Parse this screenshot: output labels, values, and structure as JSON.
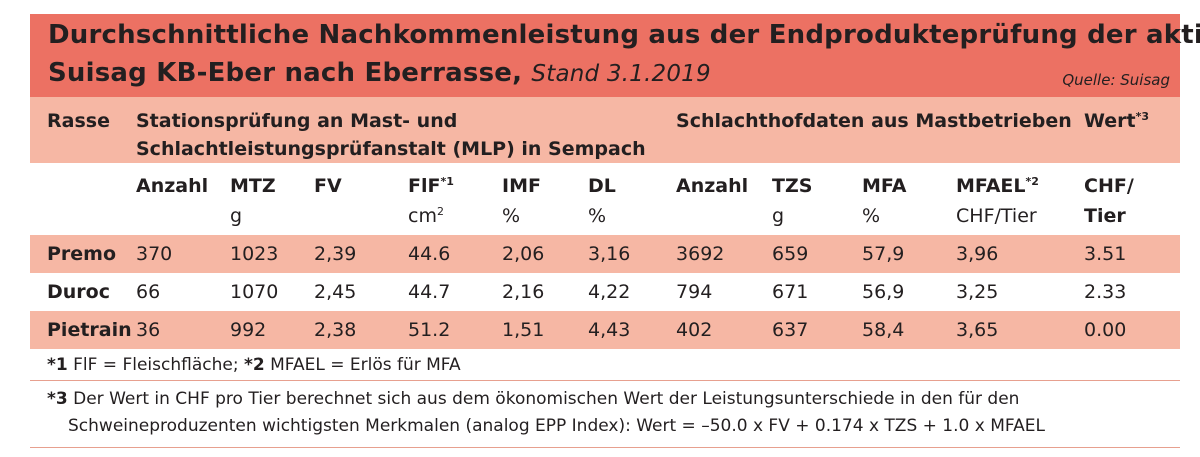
{
  "title": {
    "line1": "Durchschnittliche Nachkommenleistung aus der Endprodukteprüfung der aktiven",
    "line2": "Suisag KB-Eber nach Eberrasse,",
    "stand": "Stand 3.1.2019",
    "source": "Quelle: Suisag"
  },
  "header": {
    "rasse": "Rasse",
    "station_line1": "Stationsprüfung an Mast- und",
    "station_line2": "Schlachtleistungsprüfanstalt (MLP) in Sempach",
    "schlachthof": "Schlachthofdaten aus Mastbetrieben",
    "wert": "Wert",
    "wert_mark": "*3"
  },
  "columns": [
    {
      "label": "Anzahl",
      "unit": ""
    },
    {
      "label": "MTZ",
      "unit": "g"
    },
    {
      "label": "FV",
      "unit": ""
    },
    {
      "label": "FlF",
      "mark": "*1",
      "unit": "cm",
      "unit_sup": "2"
    },
    {
      "label": "IMF",
      "unit": "%"
    },
    {
      "label": "DL",
      "unit": "%"
    },
    {
      "label": "Anzahl",
      "unit": ""
    },
    {
      "label": "TZS",
      "unit": "g"
    },
    {
      "label": "MFA",
      "unit": "%"
    },
    {
      "label": "MFAEL",
      "mark": "*2",
      "unit": "CHF/Tier"
    },
    {
      "label": "CHF/",
      "unit_bold": "Tier"
    }
  ],
  "rows": [
    {
      "name": "Premo",
      "values": [
        "370",
        "1023",
        "2,39",
        "44.6",
        "2,06",
        "3,16",
        "3692",
        "659",
        "57,9",
        "3,96",
        "3.51"
      ]
    },
    {
      "name": "Duroc",
      "values": [
        "66",
        "1070",
        "2,45",
        "44.7",
        "2,16",
        "4,22",
        "794",
        "671",
        "56,9",
        "3,25",
        "2.33"
      ]
    },
    {
      "name": "Pietrain",
      "values": [
        "36",
        "992",
        "2,38",
        "51.2",
        "1,51",
        "4,43",
        "402",
        "637",
        "58,4",
        "3,65",
        "0.00"
      ]
    }
  ],
  "footnotes": {
    "f1_mark": "*1",
    "f1_text": "FlF = Fleischfläche;",
    "f2_mark": "*2",
    "f2_text": "MFAEL = Erlös für MFA",
    "f3_mark": "*3",
    "f3_line1": "Der Wert in CHF pro Tier berechnet sich aus dem ökonomischen Wert der Leistungsunterschiede in den für den",
    "f3_line2": "Schweineproduzenten wichtigsten Merkmalen (analog EPP Index): Wert =  –50.0 x FV + 0.174 x TZS + 1.0 x MFAEL"
  }
}
